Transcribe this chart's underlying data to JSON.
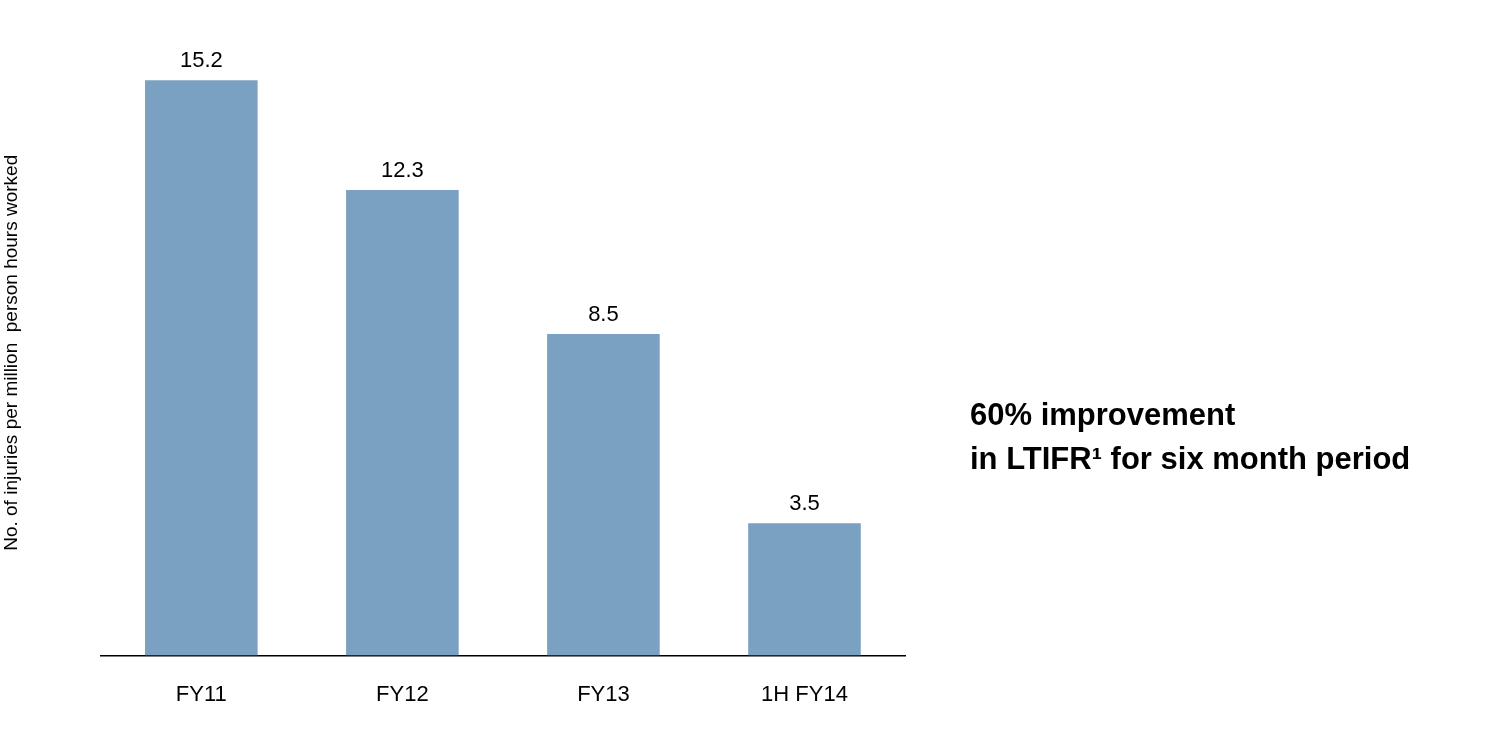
{
  "chart_data": {
    "type": "bar",
    "ylabel": "No. of injuries per million  person hours worked",
    "categories": [
      "FY11",
      "FY12",
      "FY13",
      "1H FY14"
    ],
    "values": [
      15.2,
      12.3,
      8.5,
      3.5
    ],
    "color": "#7aa0c2",
    "data_labels": true,
    "grid": false,
    "legend": false,
    "annotations": [
      "60% improvement\nin LTIFR¹ for six month period"
    ]
  }
}
